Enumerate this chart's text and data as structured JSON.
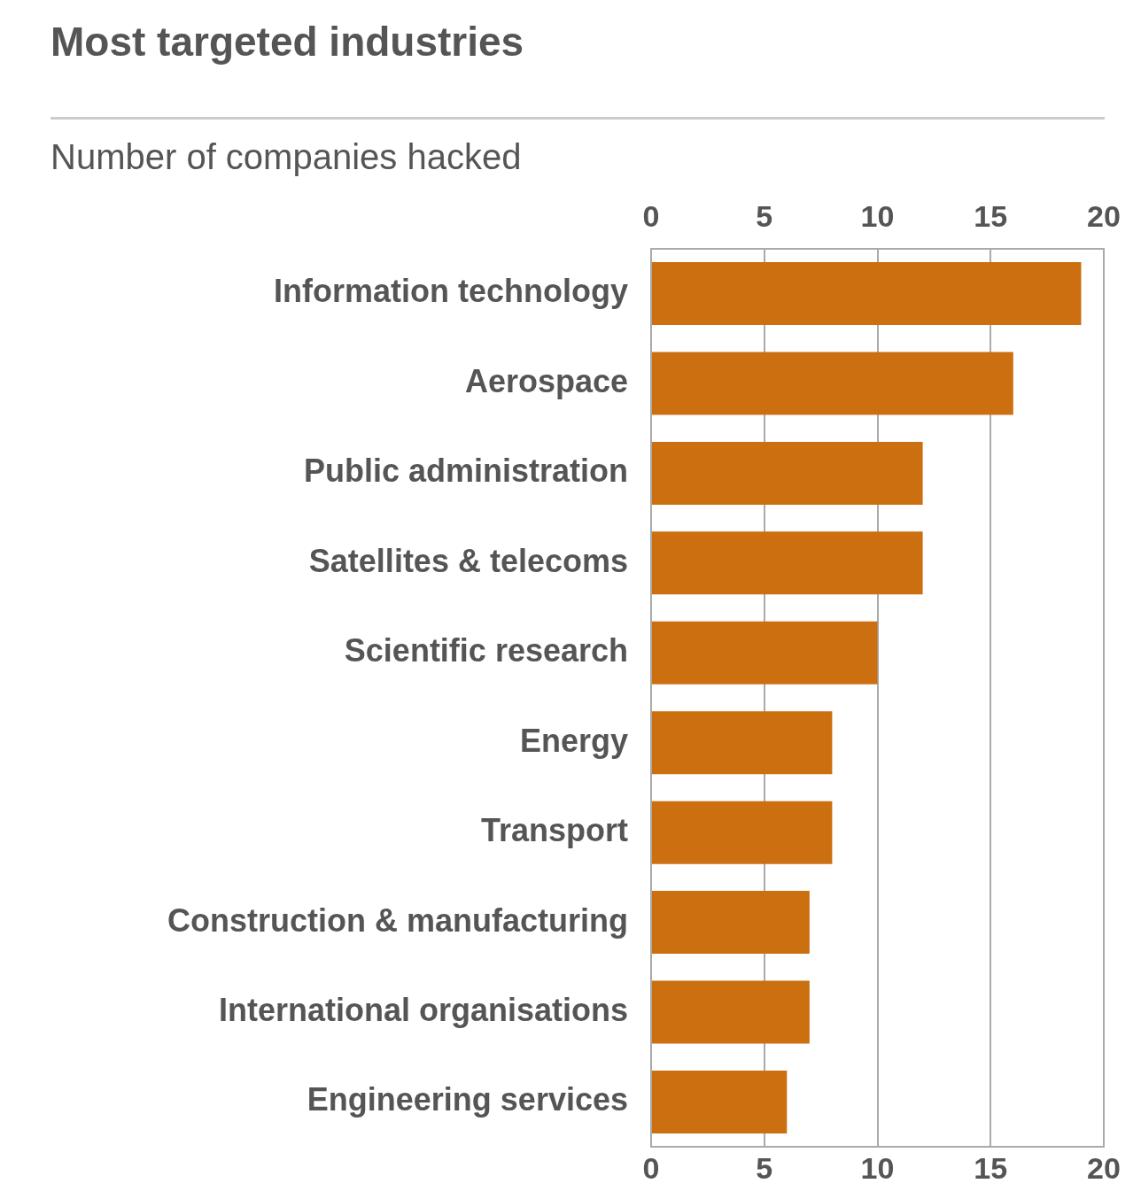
{
  "chart_data": {
    "type": "bar",
    "orientation": "horizontal",
    "title": "Most targeted industries",
    "subtitle": "Number of companies hacked",
    "categories": [
      "Information technology",
      "Aerospace",
      "Public administration",
      "Satellites & telecoms",
      "Scientific research",
      "Energy",
      "Transport",
      "Construction & manufacturing",
      "International organisations",
      "Engineering services"
    ],
    "values": [
      19,
      16,
      12,
      12,
      10,
      8,
      8,
      7,
      7,
      6
    ],
    "color": "#cc6f10",
    "xlim": [
      0,
      20
    ],
    "xticks": [
      0,
      5,
      10,
      15,
      20
    ],
    "x2lim": [
      0,
      20
    ],
    "x2ticks": [
      0,
      5,
      10,
      15,
      20
    ],
    "grid": "x",
    "legend": false
  }
}
